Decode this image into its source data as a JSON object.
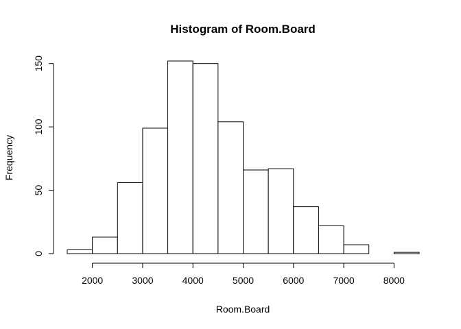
{
  "chart_data": {
    "type": "bar",
    "title": "Histogram of Room.Board",
    "xlabel": "Room.Board",
    "ylabel": "Frequency",
    "bin_edges": [
      1500,
      2000,
      2500,
      3000,
      3500,
      4000,
      4500,
      5000,
      5500,
      6000,
      6500,
      7000,
      7500,
      8000,
      8500
    ],
    "values": [
      3,
      13,
      56,
      99,
      152,
      150,
      104,
      66,
      67,
      37,
      22,
      7,
      0,
      1
    ],
    "x_ticks": [
      2000,
      3000,
      4000,
      5000,
      6000,
      7000,
      8000
    ],
    "y_ticks": [
      0,
      50,
      100,
      150
    ],
    "xlim": [
      1500,
      8500
    ],
    "ylim": [
      0,
      152
    ],
    "grid": false,
    "colors": {
      "bar_fill": "#ffffff",
      "bar_stroke": "#000000"
    }
  }
}
